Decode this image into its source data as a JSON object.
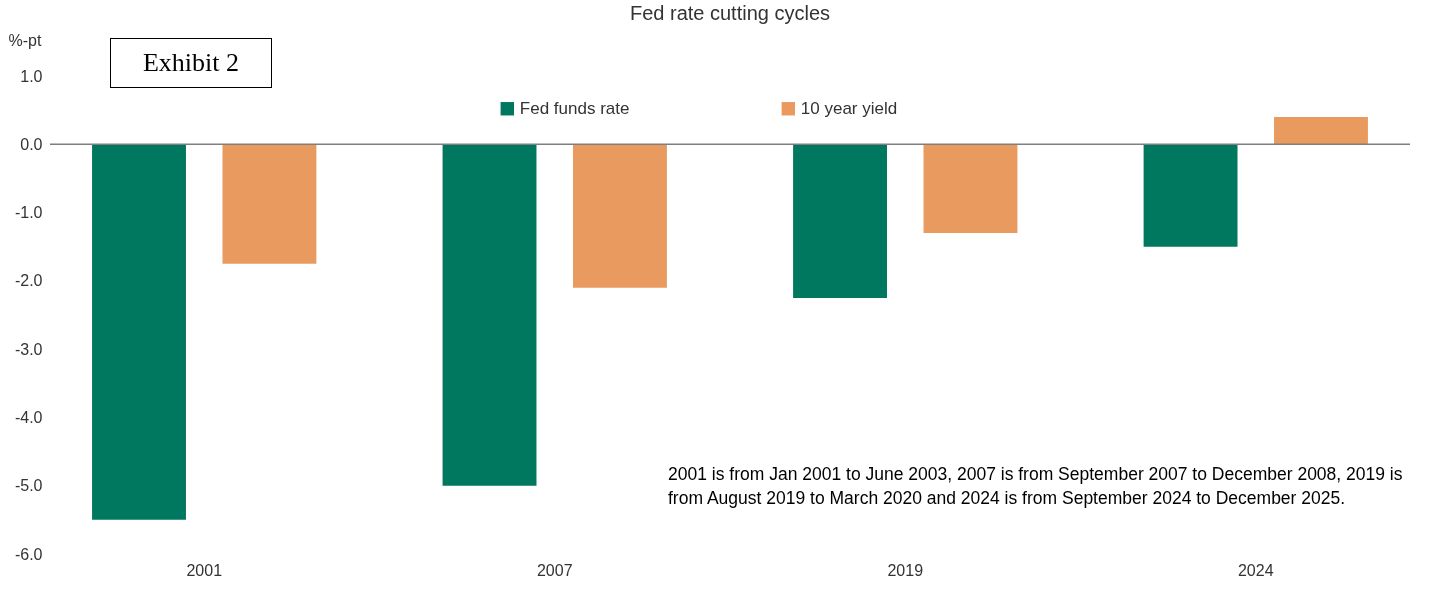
{
  "chart_data": {
    "type": "bar",
    "title": "Fed rate cutting cycles",
    "ylabel": "%-pt",
    "categories": [
      "2001",
      "2007",
      "2019",
      "2024"
    ],
    "series": [
      {
        "name": "Fed funds rate",
        "color": "#00785f",
        "values": [
          -5.5,
          -5.0,
          -2.25,
          -1.5
        ]
      },
      {
        "name": "10 year yield",
        "color": "#e99b5f",
        "values": [
          -1.75,
          -2.1,
          -1.3,
          0.4
        ]
      }
    ],
    "ylim": [
      -6,
      1
    ],
    "yticks": [
      {
        "value": 1,
        "label": "1.0"
      },
      {
        "value": 0,
        "label": "0.0"
      },
      {
        "value": -1,
        "label": "-1.0"
      },
      {
        "value": -2,
        "label": "-2.0"
      },
      {
        "value": -3,
        "label": "-3.0"
      },
      {
        "value": -4,
        "label": "-4.0"
      },
      {
        "value": -5,
        "label": "-5.0"
      },
      {
        "value": -6,
        "label": "-6.0"
      }
    ],
    "ref_lines": [
      {
        "axis": "y",
        "value": 0,
        "color": "#7f7f7f"
      }
    ],
    "legend": "top",
    "grid": false,
    "annotations": [
      "Exhibit 2",
      "2001 is from Jan 2001 to June 2003, 2007 is from September 2007 to December 2008, 2019 is from August 2019 to March 2020 and 2024 is from September 2024 to December 2025."
    ]
  }
}
